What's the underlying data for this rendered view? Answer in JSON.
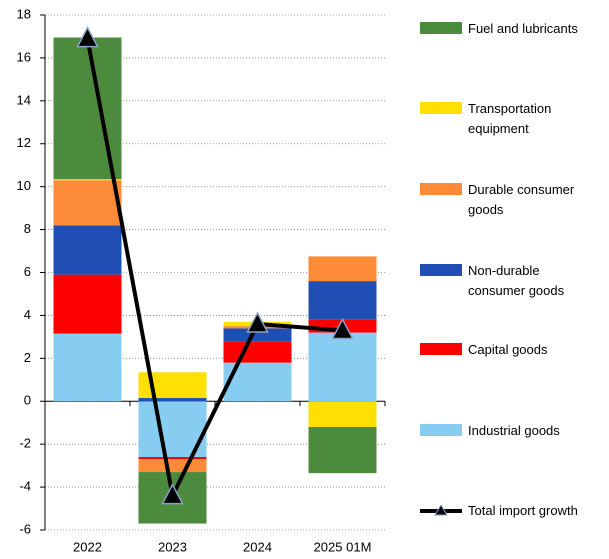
{
  "chart_data": {
    "type": "bar",
    "stacked": true,
    "categories": [
      "2022",
      "2023",
      "2024",
      "2025 01M"
    ],
    "series": [
      {
        "name": "Industrial goods",
        "color": "#87cdf2",
        "values": [
          3.15,
          -2.6,
          1.8,
          3.2
        ]
      },
      {
        "name": "Capital goods",
        "color": "#ff0000",
        "values": [
          2.75,
          -0.1,
          1.0,
          0.6
        ]
      },
      {
        "name": "Non-durable consumer goods",
        "color": "#1f4fb4",
        "values": [
          2.3,
          0.15,
          0.6,
          1.8
        ]
      },
      {
        "name": "Durable consumer goods",
        "color": "#fd8a36",
        "values": [
          2.1,
          -0.6,
          0.1,
          1.15
        ]
      },
      {
        "name": "Transportation equipment",
        "color": "#ffe000",
        "values": [
          0.05,
          1.2,
          0.2,
          -1.2
        ]
      },
      {
        "name": "Fuel and lubricants",
        "color": "#4c8a3e",
        "values": [
          6.6,
          -2.4,
          0,
          -2.15
        ]
      },
      {
        "name": "Total import growth",
        "type": "line",
        "color": "#000000",
        "values": [
          16.9,
          -4.4,
          3.6,
          3.3
        ]
      }
    ],
    "ylim": [
      -6,
      18
    ],
    "yticks": [
      -6,
      -4,
      -2,
      0,
      2,
      4,
      6,
      8,
      10,
      12,
      14,
      16,
      18
    ],
    "grid": true
  }
}
